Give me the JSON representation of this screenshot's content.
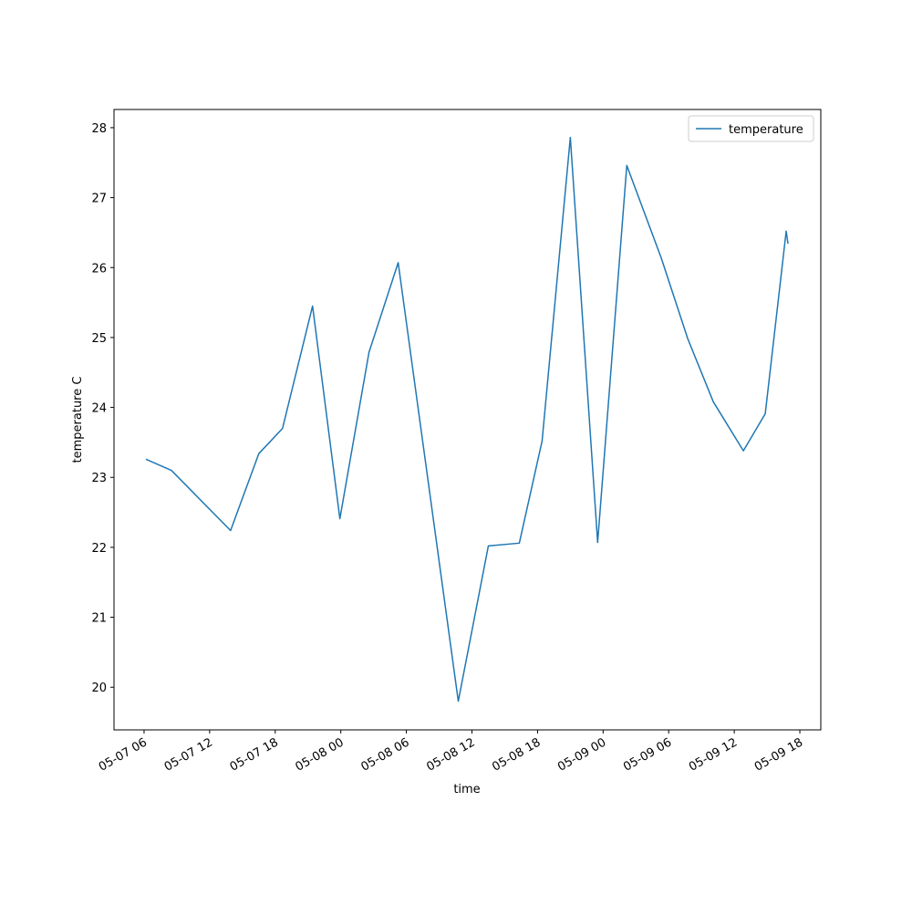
{
  "chart_data": {
    "type": "line",
    "x_label": "time",
    "y_label": "temperature C",
    "x": [
      "05-07 06:10",
      "05-07 08:30",
      "05-07 13:55",
      "05-07 16:30",
      "05-07 18:40",
      "05-07 21:25",
      "05-07 23:55",
      "05-08 02:35",
      "05-08 05:15",
      "05-08 10:45",
      "05-08 13:30",
      "05-08 16:20",
      "05-08 18:25",
      "05-08 21:00",
      "05-08 23:30",
      "05-09 02:10",
      "05-09 05:20",
      "05-09 07:45",
      "05-09 10:05",
      "05-09 12:50",
      "05-09 14:50",
      "05-09 16:45",
      "05-09 16:55"
    ],
    "series": [
      {
        "name": "temperature",
        "color": "#1f77b4",
        "values": [
          23.26,
          23.1,
          22.24,
          23.34,
          23.7,
          25.45,
          22.41,
          24.79,
          26.07,
          19.8,
          22.02,
          22.06,
          23.52,
          27.86,
          22.07,
          27.46,
          26.13,
          24.98,
          24.08,
          23.38,
          23.91,
          26.52,
          26.34
        ]
      }
    ],
    "xlim": [
      "05-07 03:15",
      "05-09 19:55"
    ],
    "xticks": [
      "05-07 06",
      "05-07 12",
      "05-07 18",
      "05-08 00",
      "05-08 06",
      "05-08 12",
      "05-08 18",
      "05-09 00",
      "05-09 06",
      "05-09 12",
      "05-09 18"
    ],
    "ylim": [
      19.39,
      28.26
    ],
    "yticks": [
      20,
      21,
      22,
      23,
      24,
      25,
      26,
      27,
      28
    ],
    "grid": false,
    "legend": "upper right"
  }
}
